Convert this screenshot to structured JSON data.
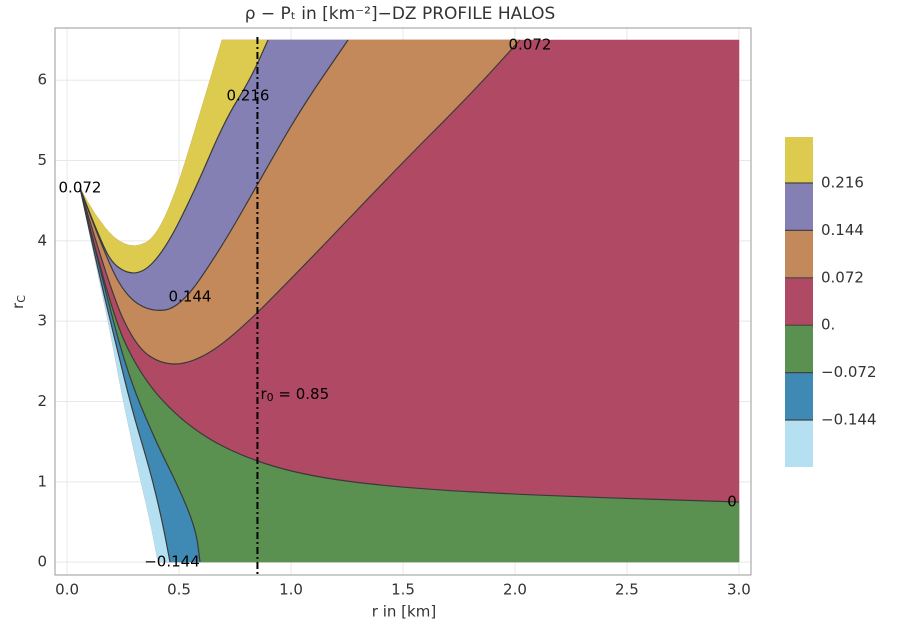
{
  "chart_data": {
    "type": "contour",
    "title": "ρ − Pₜ in [km⁻²]−DZ PROFILE HALOS",
    "xlabel": "r in [km]",
    "ylabel": {
      "text": "r",
      "sub": "C"
    },
    "xlim": [
      -0.054,
      3.054
    ],
    "ylim": [
      -0.16,
      6.65
    ],
    "xticks": [
      {
        "value": 0,
        "label": "0.0"
      },
      0.5,
      {
        "value": 1,
        "label": "1.0"
      },
      1.5,
      {
        "value": 2,
        "label": "2.0"
      },
      2.5,
      {
        "value": 3,
        "label": "3.0"
      }
    ],
    "yticks": [
      0,
      1,
      2,
      3,
      4,
      5,
      6
    ],
    "grid": true,
    "levels": [
      {
        "value": -0.144,
        "label": "−0.144"
      },
      {
        "value": -0.072,
        "label": "−0.072"
      },
      {
        "value": 0,
        "label": "0."
      },
      0.072,
      0.144,
      0.216
    ],
    "colors": [
      "#b5e0f2",
      "#3f8ab5",
      "#5a9150",
      "#b04a64",
      "#c4895a",
      "#8480b4",
      "#dccb4f"
    ],
    "contour_labels": [
      {
        "value": 0.072,
        "label": "0.072"
      },
      {
        "value": 0.072,
        "label": "0.072"
      },
      0.216,
      0.144,
      0,
      {
        "value": -0.144,
        "label": "−0.144"
      }
    ],
    "vline": 0.85,
    "annotation": {
      "text": "r",
      "sub": "0",
      "rest": " = 0.85"
    }
  }
}
